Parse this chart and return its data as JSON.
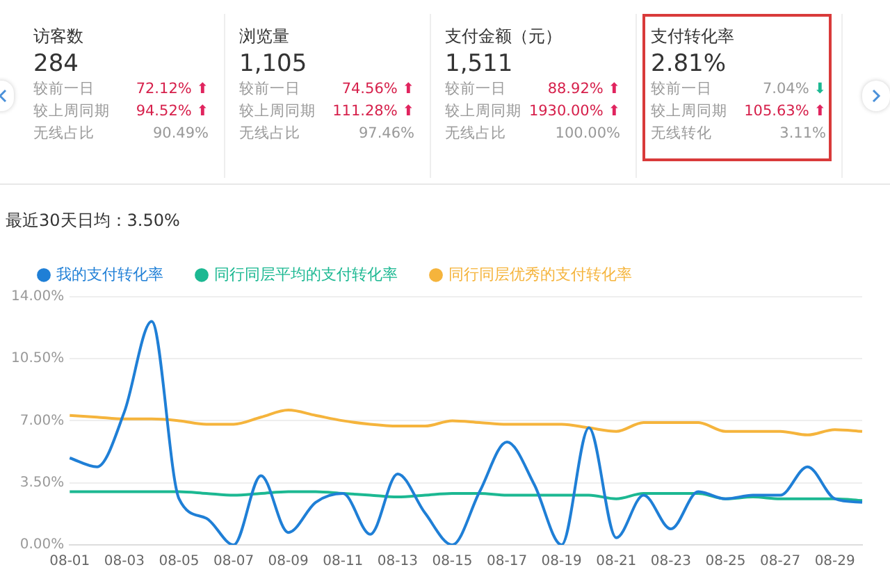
{
  "chart_data": [
    {
      "type": "other",
      "annotations": [
        "访客数",
        "284",
        "较前一日",
        "72.12% ⬆",
        "较上周同期",
        "94.52% ⬆",
        "无线占比",
        "90.49%",
        "浏览量",
        "1,105",
        "较前一日",
        "74.56% ⬆",
        "较上周同期",
        "111.28% ⬆",
        "无线占比",
        "97.46%",
        "支付金额（元）",
        "1,511",
        "较前一日",
        "88.92% ⬆",
        "较上周同期",
        "1930.00% ⬆",
        "无线占比",
        "100.00%",
        "支付转化率",
        "2.81%",
        "较前一日",
        "7.04% ⬇",
        "较上周同期",
        "105.63% ⬆",
        "无线转化",
        "3.11%"
      ]
    },
    {
      "type": "line",
      "subtitle": "最近30天日均：3.50%",
      "legend": "top left",
      "grid": "y",
      "marker": "none",
      "line_style": "solid",
      "categories": [
        "08-01",
        null,
        "08-03",
        null,
        "08-05",
        null,
        "08-07",
        null,
        "08-09",
        null,
        "08-11",
        null,
        "08-13",
        null,
        "08-15",
        null,
        "08-17",
        null,
        "08-19",
        null,
        "08-21",
        null,
        "08-23",
        null,
        "08-25",
        null,
        "08-27",
        null,
        "08-29",
        null
      ],
      "ylim": [
        0,
        14
      ],
      "yticks": [
        {
          "value": 0,
          "label": "0.00%"
        },
        {
          "value": 3.5,
          "label": "3.50%"
        },
        {
          "value": 7,
          "label": "7.00%"
        },
        {
          "value": 10.5,
          "label": "10.50%"
        },
        {
          "value": 14,
          "label": "14.00%"
        }
      ],
      "series": [
        {
          "name": "我的支付转化率",
          "color": "#1f7fd6",
          "values": [
            4.9,
            4.4,
            7.5,
            12.6,
            2.6,
            1.5,
            0,
            3.9,
            0.7,
            2.4,
            2.9,
            0.6,
            4.0,
            1.8,
            0,
            3.0,
            5.8,
            3.4,
            0,
            6.6,
            0.4,
            2.8,
            0.9,
            3.0,
            2.6,
            2.8,
            2.8,
            4.4,
            2.6,
            2.4
          ]
        },
        {
          "name": "同行同层平均的支付转化率",
          "color": "#1cb892",
          "values": [
            3.0,
            3.0,
            3.0,
            3.0,
            3.0,
            2.9,
            2.8,
            2.9,
            3.0,
            3.0,
            2.9,
            2.8,
            2.7,
            2.8,
            2.9,
            2.9,
            2.8,
            2.8,
            2.8,
            2.8,
            2.6,
            2.9,
            2.9,
            2.9,
            2.6,
            2.7,
            2.6,
            2.6,
            2.6,
            2.5
          ]
        },
        {
          "name": "同行同层优秀的支付转化率",
          "color": "#f5b43c",
          "values": [
            7.3,
            7.2,
            7.1,
            7.1,
            7.0,
            6.8,
            6.8,
            7.2,
            7.6,
            7.3,
            7.0,
            6.8,
            6.7,
            6.7,
            7.0,
            6.9,
            6.8,
            6.8,
            6.8,
            6.6,
            6.4,
            6.9,
            6.9,
            6.9,
            6.4,
            6.4,
            6.4,
            6.2,
            6.5,
            6.4
          ]
        }
      ]
    }
  ]
}
